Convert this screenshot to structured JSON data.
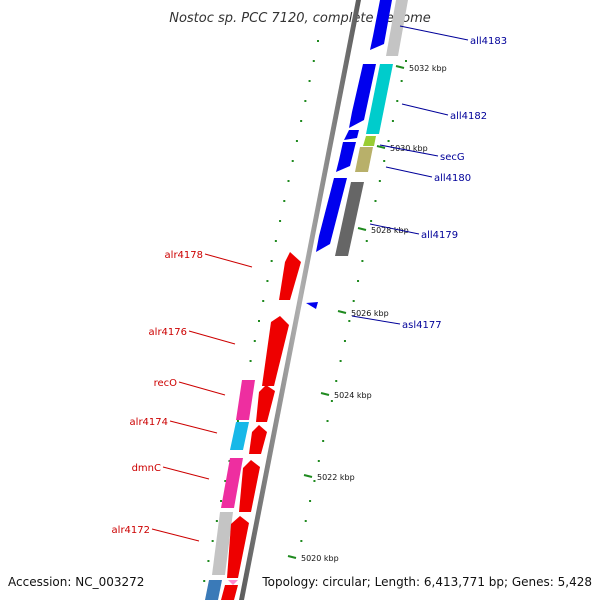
{
  "title": "Nostoc sp. PCC 7120, complete genome",
  "footer": {
    "accession": "Accession: NC_003272",
    "summary": "Topology: circular; Length: 6,413,771 bp; Genes: 5,428"
  },
  "colors": {
    "backbone": "#808080",
    "tick": "#1f8a1f",
    "forward_label": "#cc0000",
    "reverse_label": "#000099"
  },
  "ticks": [
    {
      "label": "5032 kbp"
    },
    {
      "label": "5030 kbp"
    },
    {
      "label": "5028 kbp"
    },
    {
      "label": "5026 kbp"
    },
    {
      "label": "5024 kbp"
    },
    {
      "label": "5022 kbp"
    },
    {
      "label": "5020 kbp"
    }
  ],
  "genes": [
    {
      "name": "all4183",
      "strand": "reverse",
      "color": "#0000ee",
      "labeled": true
    },
    {
      "name": "all4182",
      "strand": "reverse",
      "color": "#0000ee",
      "labeled": true
    },
    {
      "name": "all4182-cyan",
      "strand": "reverse",
      "color": "#00cccc",
      "labeled": false
    },
    {
      "name": "secG",
      "strand": "reverse",
      "color": "#99cc33",
      "labeled": true
    },
    {
      "name": "all4180",
      "strand": "reverse",
      "color": "#0000ee",
      "labeled": true
    },
    {
      "name": "all4180-olive",
      "strand": "reverse",
      "color": "#b8b06a",
      "labeled": false
    },
    {
      "name": "all4179",
      "strand": "reverse",
      "color": "#0000ee",
      "labeled": true
    },
    {
      "name": "all4179-gray",
      "strand": "reverse",
      "color": "#666666",
      "labeled": false
    },
    {
      "name": "asl4177",
      "strand": "reverse",
      "color": "#0000ee",
      "labeled": true
    },
    {
      "name": "alr4178",
      "strand": "forward",
      "color": "#ee0000",
      "labeled": true
    },
    {
      "name": "alr4176",
      "strand": "forward",
      "color": "#ee0000",
      "labeled": true
    },
    {
      "name": "recO",
      "strand": "forward",
      "color": "#ee0000",
      "labeled": true
    },
    {
      "name": "alr4174",
      "strand": "forward",
      "color": "#ee0000",
      "labeled": true
    },
    {
      "name": "dmnC",
      "strand": "forward",
      "color": "#ee0000",
      "labeled": true
    },
    {
      "name": "alr4172",
      "strand": "forward",
      "color": "#ee0000",
      "labeled": true
    }
  ],
  "labels": {
    "all4183": "all4183",
    "all4182": "all4182",
    "secG": "secG",
    "all4180": "all4180",
    "all4179": "all4179",
    "asl4177": "asl4177",
    "alr4178": "alr4178",
    "alr4176": "alr4176",
    "recO": "recO",
    "alr4174": "alr4174",
    "dmnC": "dmnC",
    "alr4172": "alr4172"
  }
}
